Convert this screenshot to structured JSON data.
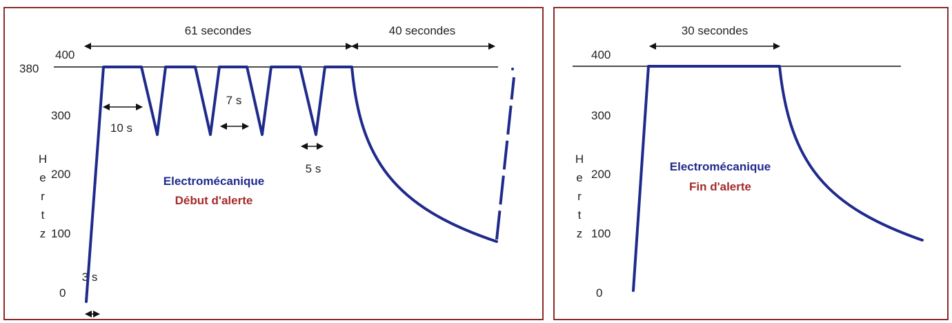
{
  "colors": {
    "frame": "#8a2a2a",
    "curve": "#1f2a8c",
    "title_blue": "#1f2a8c",
    "title_red": "#a52a2a",
    "text": "#222222"
  },
  "left_panel": {
    "title": "Electromécanique",
    "subtitle": "Début d'alerte",
    "y_axis_label": "Hertz",
    "y_ticks": [
      "0",
      "100",
      "200",
      "300",
      "380",
      "400"
    ],
    "spans": {
      "span_61": "61 secondes",
      "span_40": "40 secondes",
      "span_10": "10 s",
      "span_7": "7 s",
      "span_5": "5 s",
      "span_3": "3 s"
    }
  },
  "right_panel": {
    "title": "Electromécanique",
    "subtitle": "Fin d'alerte",
    "y_axis_label": "Hertz",
    "y_ticks": [
      "0",
      "100",
      "200",
      "300",
      "400"
    ],
    "spans": {
      "span_30": "30 secondes"
    }
  }
}
